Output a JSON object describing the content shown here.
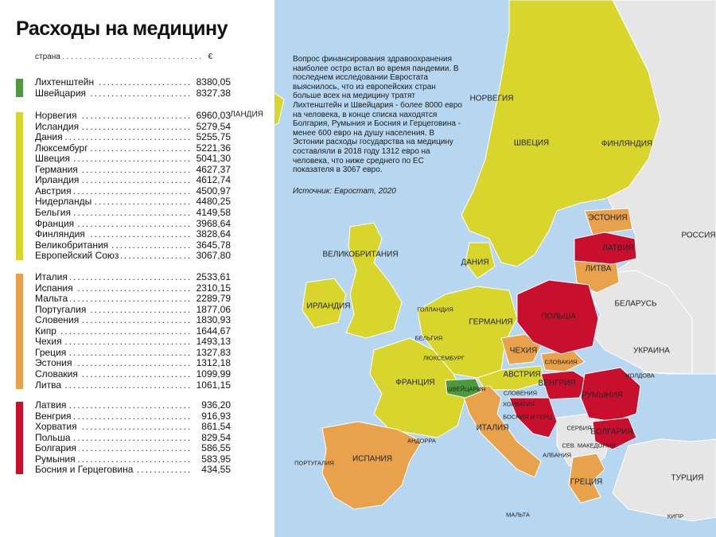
{
  "title": "Расходы на медицину",
  "table": {
    "header_country": "страна",
    "header_currency": "€",
    "groups": [
      {
        "color": "#4d9a3e",
        "rows": [
          {
            "country": "Лихтенштейн",
            "value": "8380,05"
          },
          {
            "country": "Швейцария",
            "value": "8327,38"
          }
        ]
      },
      {
        "color": "#d8d62c",
        "rows": [
          {
            "country": "Норвегия",
            "value": "6960,03"
          },
          {
            "country": "Исландия",
            "value": "5279,54"
          },
          {
            "country": "Дания",
            "value": "5255,75"
          },
          {
            "country": "Люксембург",
            "value": "5221,36"
          },
          {
            "country": "Швеция",
            "value": "5041,30"
          },
          {
            "country": "Германия",
            "value": "4627,37"
          },
          {
            "country": "Ирландия",
            "value": "4612,74"
          },
          {
            "country": "Австрия",
            "value": "4500,97"
          },
          {
            "country": "Нидерланды",
            "value": "4480,25"
          },
          {
            "country": "Бельгия",
            "value": "4149,58"
          },
          {
            "country": "Франция",
            "value": "3968,64"
          },
          {
            "country": "Финляндия",
            "value": "3828,64"
          },
          {
            "country": "Великобритания",
            "value": "3645,78"
          },
          {
            "country": "Европейский Союз",
            "value": "3067,80"
          }
        ]
      },
      {
        "color": "#e8a24c",
        "rows": [
          {
            "country": "Италия",
            "value": "2533,61"
          },
          {
            "country": "Испания",
            "value": "2310,15"
          },
          {
            "country": "Мальта",
            "value": "2289,79"
          },
          {
            "country": "Португалия",
            "value": "1877,06"
          },
          {
            "country": "Словения",
            "value": "1830,93"
          },
          {
            "country": "Кипр",
            "value": "1644,67"
          },
          {
            "country": "Чехия",
            "value": "1493,13"
          },
          {
            "country": "Греция",
            "value": "1327,83"
          },
          {
            "country": "Эстония",
            "value": "1312,18"
          },
          {
            "country": "Словакия",
            "value": "1099,99"
          },
          {
            "country": "Литва",
            "value": "1061,15"
          }
        ]
      },
      {
        "color": "#c8102e",
        "rows": [
          {
            "country": "Латвия",
            "value": "936,20"
          },
          {
            "country": "Венгрия",
            "value": "916,93"
          },
          {
            "country": "Хорватия",
            "value": "861,54"
          },
          {
            "country": "Польша",
            "value": "829,54"
          },
          {
            "country": "Болгария",
            "value": "586,55"
          },
          {
            "country": "Румыния",
            "value": "583,95"
          },
          {
            "country": "Босния и Герцеговина",
            "value": "434,55"
          }
        ]
      }
    ]
  },
  "article": {
    "text": "Вопрос финансирования здравоохранения наиболее остро встал во время пандемии. В последнем исследовании Евростата выяснилось, что  из европейских стран больше всех на медицину тратят Лихтенштейн и Швейцария - более 8000 евро на человека, в конце списка находятся Болгария, Румыния и Босния и Герцеговина - менее 600 евро на душу населения. В Эстонии расходы государства на медицину составляли в 2018 году 1312 евро на человека, что ниже среднего по ЕС показателя в 3067 евро.",
    "source": "Источник: Евростат, 2020"
  },
  "map_labels": [
    {
      "text": "ИСЛАНДИЯ",
      "small": false
    },
    {
      "text": "НОРВЕГИЯ",
      "small": false
    },
    {
      "text": "ШВЕЦИЯ",
      "small": false
    },
    {
      "text": "ФИНЛЯНДИЯ",
      "small": false
    },
    {
      "text": "ЭСТОНИЯ",
      "small": false
    },
    {
      "text": "ЛАТВИЯ",
      "small": false
    },
    {
      "text": "ЛИТВА",
      "small": false
    },
    {
      "text": "РОССИЯ",
      "small": false
    },
    {
      "text": "ВЕЛИКОБРИТАНИЯ",
      "small": false
    },
    {
      "text": "ДАНИЯ",
      "small": false
    },
    {
      "text": "ИРЛАНДИЯ",
      "small": false
    },
    {
      "text": "ГОЛЛАНДИЯ",
      "small": true
    },
    {
      "text": "ГЕРМАНИЯ",
      "small": false
    },
    {
      "text": "ПОЛЬША",
      "small": false
    },
    {
      "text": "БЕЛАРУСЬ",
      "small": false
    },
    {
      "text": "БЕЛЬГИЯ",
      "small": true
    },
    {
      "text": "ЛЮКСЕМБУРГ",
      "small": true
    },
    {
      "text": "ЧЕХИЯ",
      "small": false
    },
    {
      "text": "УКРАИНА",
      "small": false
    },
    {
      "text": "СЛОВАКИЯ",
      "small": true
    },
    {
      "text": "МОЛДОВА",
      "small": true
    },
    {
      "text": "АВСТРИЯ",
      "small": false
    },
    {
      "text": "ВЕНГРИЯ",
      "small": false
    },
    {
      "text": "ФРАНЦИЯ",
      "small": false
    },
    {
      "text": "ШВЕЙЦАРИЯ",
      "small": true
    },
    {
      "text": "СЛОВЕНИЯ",
      "small": true
    },
    {
      "text": "ХОРВАТИЯ",
      "small": true
    },
    {
      "text": "БОСНИЯ И ГЕРЦ.",
      "small": true
    },
    {
      "text": "РУМЫНИЯ",
      "small": false
    },
    {
      "text": "СЕРБИЯ",
      "small": true
    },
    {
      "text": "БОЛГАРИЯ",
      "small": false
    },
    {
      "text": "ИТАЛИЯ",
      "small": false
    },
    {
      "text": "АНДОРРА",
      "small": true
    },
    {
      "text": "СЕВ. МАКЕДОНИЯ",
      "small": true
    },
    {
      "text": "АЛБАНИЯ",
      "small": true
    },
    {
      "text": "ПОРТУГАЛИЯ",
      "small": true
    },
    {
      "text": "ИСПАНИЯ",
      "small": false
    },
    {
      "text": "ТУРЦИЯ",
      "small": false
    },
    {
      "text": "ГРЕЦИЯ",
      "small": false
    },
    {
      "text": "МАЛЬТА",
      "small": true
    },
    {
      "text": "КИПР",
      "small": true
    }
  ]
}
